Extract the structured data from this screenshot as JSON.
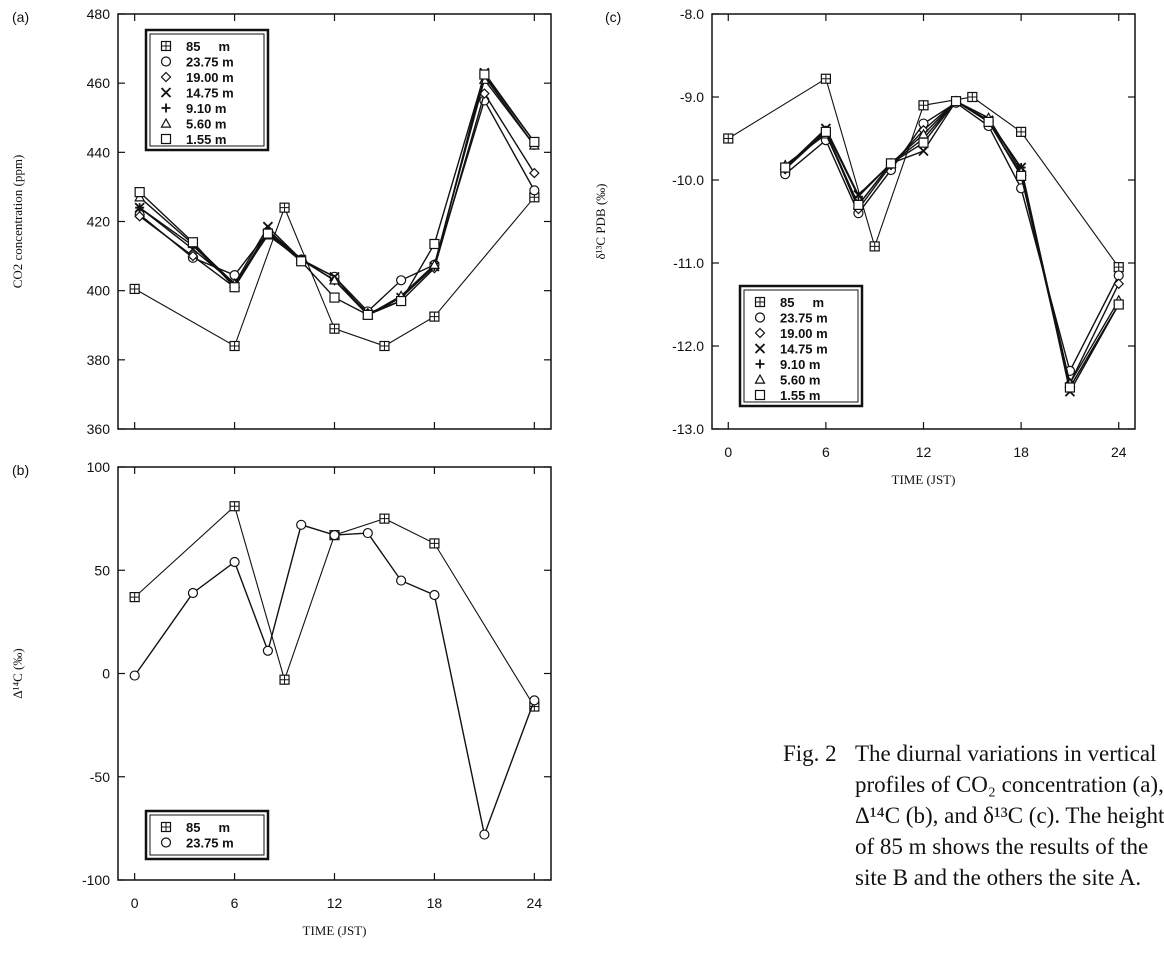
{
  "figure": {
    "caption_label": "Fig. 2",
    "caption_lines": [
      "The diurnal variations in vertical",
      "profiles of CO₂ concentration (a),",
      "Δ¹⁴C (b), and δ¹³C (c).  The height",
      "of 85 m shows the results of the",
      "site B and the others the site A."
    ]
  },
  "chart_data": [
    {
      "id": "a",
      "panel_label": "(a)",
      "type": "line",
      "xlabel": "",
      "ylabel": "CO2 concentration (ppm)",
      "xlim": [
        -1,
        25
      ],
      "ylim": [
        360,
        480
      ],
      "xticks": [
        0,
        6,
        12,
        18,
        24
      ],
      "yticks": [
        360,
        380,
        400,
        420,
        440,
        460,
        480
      ],
      "show_x_tick_labels": false,
      "grid": false,
      "legend_placement": "top-left",
      "series": [
        {
          "name": "85     m",
          "marker": "boxplus",
          "x": [
            0,
            6,
            9,
            12,
            15,
            18,
            24
          ],
          "y": [
            400.5,
            384,
            424,
            389,
            384,
            392.5,
            427
          ]
        },
        {
          "name": "23.75 m",
          "marker": "circle",
          "x": [
            0.3,
            3.5,
            6,
            8,
            10,
            12,
            14,
            16,
            18,
            21,
            24
          ],
          "y": [
            422,
            409.5,
            404.5,
            417,
            409,
            404,
            394,
            403,
            407.5,
            455,
            429
          ]
        },
        {
          "name": "19.00 m",
          "marker": "diamond",
          "x": [
            0.3,
            3.5,
            6,
            8,
            10,
            12,
            14,
            16,
            18,
            21,
            24
          ],
          "y": [
            421.5,
            410,
            401,
            417.5,
            409,
            403,
            393.5,
            397,
            406.5,
            457,
            434
          ]
        },
        {
          "name": "14.75 m",
          "marker": "x",
          "x": [
            0.3,
            3.5,
            6,
            8,
            10,
            12,
            14,
            16,
            18,
            21,
            24
          ],
          "y": [
            424,
            412,
            402,
            418.5,
            409,
            404,
            393,
            398,
            407,
            463,
            443
          ]
        },
        {
          "name": "9.10 m",
          "marker": "plus",
          "x": [
            0.3,
            3.5,
            6,
            8,
            10,
            12,
            14,
            16,
            18,
            21,
            24
          ],
          "y": [
            424,
            413,
            401.5,
            417,
            409,
            403,
            393,
            398,
            407,
            462,
            442
          ]
        },
        {
          "name": "5.60 m",
          "marker": "triangle",
          "x": [
            0.3,
            3.5,
            6,
            8,
            10,
            12,
            14,
            16,
            18,
            21,
            24
          ],
          "y": [
            427,
            413.5,
            402,
            416,
            409,
            403,
            393,
            398.5,
            407.5,
            461,
            442
          ]
        },
        {
          "name": "1.55 m",
          "marker": "square",
          "x": [
            0.3,
            3.5,
            6,
            8,
            10,
            12,
            14,
            16,
            18,
            21,
            24
          ],
          "y": [
            428.5,
            414,
            401,
            416.5,
            408.5,
            398,
            393,
            397,
            413.5,
            462.5,
            443
          ]
        }
      ]
    },
    {
      "id": "b",
      "panel_label": "(b)",
      "type": "line",
      "xlabel": "TIME (JST)",
      "ylabel": "Δ¹⁴C (‰)",
      "xlim": [
        -1,
        25
      ],
      "ylim": [
        -100,
        100
      ],
      "xticks": [
        0,
        6,
        12,
        18,
        24
      ],
      "yticks": [
        -100,
        -50,
        0,
        50,
        100
      ],
      "show_x_tick_labels": true,
      "grid": false,
      "legend_placement": "bottom-left",
      "series": [
        {
          "name": "85     m",
          "marker": "boxplus",
          "x": [
            0,
            6,
            9,
            12,
            15,
            18,
            24
          ],
          "y": [
            37,
            81,
            -3,
            67,
            75,
            63,
            -16
          ]
        },
        {
          "name": "23.75 m",
          "marker": "circle",
          "x": [
            0,
            3.5,
            6,
            8,
            10,
            12,
            14,
            16,
            18,
            21,
            24
          ],
          "y": [
            -1,
            39,
            54,
            11,
            72,
            67,
            68,
            45,
            38,
            -78,
            -13
          ]
        }
      ]
    },
    {
      "id": "c",
      "panel_label": "(c)",
      "type": "line",
      "xlabel": "TIME (JST)",
      "ylabel": "δ¹³C PDB (‰)",
      "xlim": [
        -1,
        25
      ],
      "ylim": [
        -13.0,
        -8.0
      ],
      "xticks": [
        0,
        6,
        12,
        18,
        24
      ],
      "yticks": [
        -13.0,
        -12.0,
        -11.0,
        -10.0,
        -9.0,
        -8.0
      ],
      "show_x_tick_labels": true,
      "grid": false,
      "legend_placement": "bottom-left",
      "series": [
        {
          "name": "85     m",
          "marker": "boxplus",
          "x": [
            0,
            6,
            9,
            12,
            15,
            18,
            24
          ],
          "y": [
            -9.5,
            -8.78,
            -10.8,
            -9.1,
            -9.0,
            -9.42,
            -11.05
          ]
        },
        {
          "name": "23.75 m",
          "marker": "circle",
          "x": [
            3.5,
            6,
            8,
            10,
            12,
            14,
            16,
            18,
            21,
            24
          ],
          "y": [
            -9.93,
            -9.52,
            -10.4,
            -9.88,
            -9.32,
            -9.07,
            -9.35,
            -10.1,
            -12.3,
            -11.15
          ]
        },
        {
          "name": "19.00 m",
          "marker": "diamond",
          "x": [
            3.5,
            6,
            8,
            10,
            12,
            14,
            16,
            18,
            21,
            24
          ],
          "y": [
            -9.87,
            -9.42,
            -10.35,
            -9.82,
            -9.4,
            -9.05,
            -9.3,
            -9.93,
            -12.45,
            -11.25
          ]
        },
        {
          "name": "14.75 m",
          "marker": "x",
          "x": [
            3.5,
            6,
            8,
            10,
            12,
            14,
            16,
            18,
            21,
            24
          ],
          "y": [
            -9.85,
            -9.38,
            -10.18,
            -9.8,
            -9.65,
            -9.05,
            -9.28,
            -9.85,
            -12.55,
            -11.5
          ]
        },
        {
          "name": "9.10 m",
          "marker": "plus",
          "x": [
            3.5,
            6,
            8,
            10,
            12,
            14,
            16,
            18,
            21,
            24
          ],
          "y": [
            -9.85,
            -9.4,
            -10.2,
            -9.8,
            -9.5,
            -9.05,
            -9.3,
            -9.85,
            -12.5,
            -11.5
          ]
        },
        {
          "name": "5.60 m",
          "marker": "triangle",
          "x": [
            3.5,
            6,
            8,
            10,
            12,
            14,
            16,
            18,
            21,
            24
          ],
          "y": [
            -9.82,
            -9.45,
            -10.3,
            -9.8,
            -9.45,
            -9.05,
            -9.25,
            -9.9,
            -12.45,
            -11.45
          ]
        },
        {
          "name": "1.55 m",
          "marker": "square",
          "x": [
            3.5,
            6,
            8,
            10,
            12,
            14,
            16,
            18,
            21,
            24
          ],
          "y": [
            -9.85,
            -9.42,
            -10.3,
            -9.8,
            -9.55,
            -9.05,
            -9.3,
            -9.95,
            -12.5,
            -11.5
          ]
        }
      ]
    }
  ]
}
